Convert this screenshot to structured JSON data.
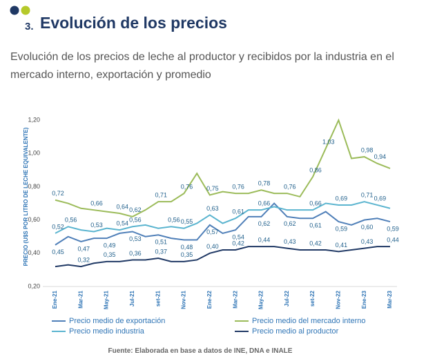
{
  "heading_number": "3.",
  "chart_data": {
    "type": "line",
    "title": "Evolución de los precios",
    "subtitle": "Evolución de los precios de leche al productor y recibidos por la industria en el mercado interno, exportación y promedio",
    "y_label": "PRECIO (U$S POR LITRO DE LECHE EQUIVALENTE)",
    "source": "Fuente: Elaborada en base a datos de INE, DNA e INALE",
    "categories": [
      "Ene-21",
      null,
      "Mar-21",
      null,
      "May-21",
      null,
      "Jul-21",
      null,
      "set-21",
      null,
      "Nov-21",
      null,
      "Ene-22",
      null,
      "Mar-22",
      null,
      "May-22",
      null,
      "Jul-22",
      null,
      "set-22",
      null,
      "Nov-22",
      null,
      "Ene-23",
      null,
      "Mar-23"
    ],
    "ylim": [
      0.2,
      1.3
    ],
    "yticks": [
      {
        "value": 0.2,
        "label": "0,20"
      },
      {
        "value": 0.4,
        "label": "0,40"
      },
      {
        "value": 0.6,
        "label": "0,60"
      },
      {
        "value": 0.8,
        "label": "0,80"
      },
      {
        "value": 1.0,
        "label": "1,00"
      },
      {
        "value": 1.2,
        "label": "1,20"
      }
    ],
    "grid": false,
    "series": [
      {
        "name": "Precio medio de exportación",
        "color": "#4f7fb8",
        "values": [
          0.45,
          0.5,
          0.47,
          0.49,
          0.49,
          0.52,
          0.53,
          0.5,
          0.51,
          0.49,
          0.48,
          0.48,
          0.57,
          0.52,
          0.54,
          0.62,
          0.62,
          0.7,
          0.62,
          0.61,
          0.61,
          0.65,
          0.59,
          0.57,
          0.6,
          0.61,
          0.59
        ],
        "value_labels": [
          "0,45",
          null,
          "0,47",
          null,
          "0,49",
          null,
          "0,53",
          null,
          "0,51",
          null,
          "0,48",
          null,
          "0,57",
          null,
          "0,54",
          null,
          "0,62",
          null,
          "0,62",
          null,
          "0,61",
          null,
          "0,59",
          null,
          "0,60",
          null,
          "0,59"
        ]
      },
      {
        "name": "Precio medio del mercado interno",
        "color": "#9bbb59",
        "values": [
          0.72,
          0.7,
          0.67,
          0.66,
          0.65,
          0.64,
          0.62,
          0.66,
          0.71,
          0.71,
          0.76,
          0.88,
          0.75,
          0.77,
          0.76,
          0.76,
          0.78,
          0.76,
          0.76,
          0.74,
          0.86,
          1.03,
          1.2,
          0.97,
          0.98,
          0.94,
          0.91
        ],
        "value_labels": [
          "0,72",
          null,
          null,
          "0,66",
          null,
          "0,64",
          "0,62",
          null,
          "0,71",
          null,
          "0,76",
          null,
          "0,75",
          null,
          "0,76",
          null,
          "0,78",
          null,
          "0,76",
          null,
          "0,86",
          "1,03",
          null,
          null,
          "0,98",
          "0,94",
          null
        ]
      },
      {
        "name": "Precio medio industria",
        "color": "#5ab4cf",
        "values": [
          0.52,
          0.56,
          0.54,
          0.53,
          0.55,
          0.54,
          0.56,
          0.57,
          0.55,
          0.56,
          0.55,
          0.58,
          0.63,
          0.58,
          0.61,
          0.66,
          0.66,
          0.68,
          0.66,
          0.66,
          0.66,
          0.7,
          0.69,
          0.69,
          0.71,
          0.69,
          0.67
        ],
        "value_labels": [
          "0,52",
          "0,56",
          null,
          "0,53",
          null,
          "0,54",
          "0,56",
          null,
          null,
          "0,56",
          "0,55",
          null,
          "0,63",
          null,
          "0,61",
          null,
          "0,66",
          null,
          null,
          null,
          "0,66",
          null,
          "0,69",
          null,
          "0,71",
          "0,69",
          null
        ]
      },
      {
        "name": "Precio medio al productor",
        "color": "#1f3864",
        "values": [
          0.32,
          0.33,
          0.32,
          0.34,
          0.35,
          0.35,
          0.36,
          0.36,
          0.37,
          0.35,
          0.35,
          0.36,
          0.4,
          0.42,
          0.42,
          0.44,
          0.44,
          0.44,
          0.43,
          0.42,
          0.42,
          0.42,
          0.41,
          0.42,
          0.43,
          0.44,
          0.44
        ],
        "value_labels": [
          null,
          null,
          "0,32",
          null,
          "0,35",
          null,
          "0,36",
          null,
          "0,37",
          null,
          "0,35",
          null,
          "0,40",
          null,
          "0,42",
          null,
          "0,44",
          null,
          "0,43",
          null,
          "0,42",
          null,
          "0,41",
          null,
          "0,43",
          null,
          "0,44"
        ]
      }
    ]
  }
}
